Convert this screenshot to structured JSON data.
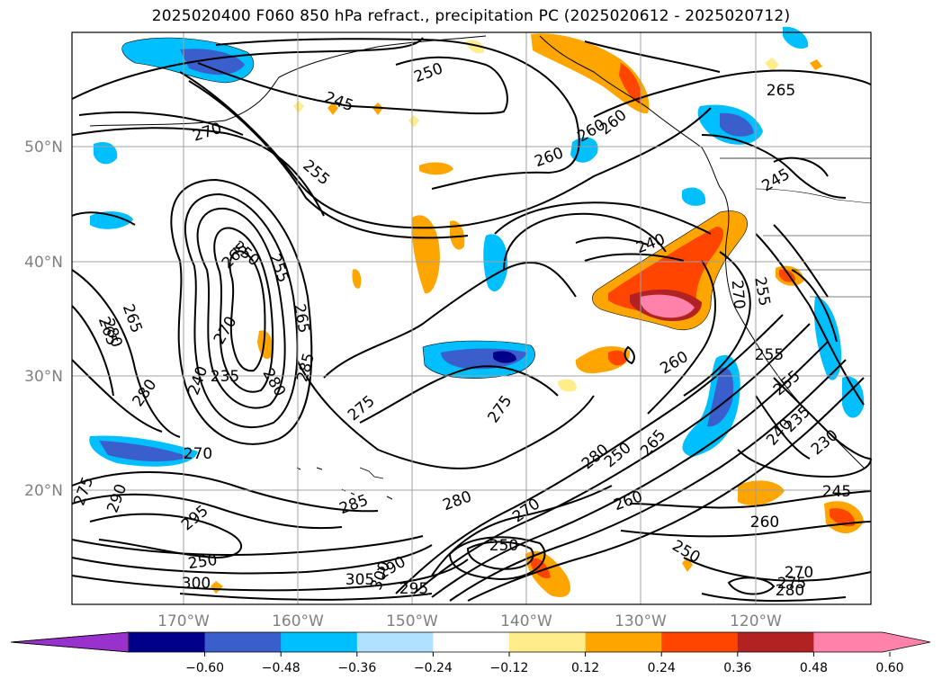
{
  "title": "2025020400 F060 850 hPa refract., precipitation PC (2025020612 - 2025020712)",
  "lat_ticks": [
    "50°N",
    "40°N",
    "30°N",
    "20°N"
  ],
  "lon_ticks": [
    "170°W",
    "160°W",
    "150°W",
    "140°W",
    "130°W",
    "120°W"
  ],
  "colorbar": {
    "ticks": [
      "−0.60",
      "−0.48",
      "−0.36",
      "−0.24",
      "−0.12",
      "0.12",
      "0.24",
      "0.36",
      "0.48",
      "0.60"
    ],
    "colors": [
      "#9932cc",
      "#00008b",
      "#3a5fcd",
      "#00bfff",
      "#b0e2ff",
      "#ffffff",
      "#ffec8b",
      "#ffa500",
      "#ff4500",
      "#b22222",
      "#ff82ab"
    ]
  },
  "contour_labels": [
    "250",
    "245",
    "270",
    "255",
    "260",
    "265",
    "255",
    "265",
    "270",
    "250",
    "235",
    "240",
    "260",
    "275",
    "280",
    "285",
    "280",
    "270",
    "275",
    "265",
    "250",
    "245",
    "240",
    "260",
    "280",
    "280",
    "270",
    "260",
    "250",
    "255",
    "255",
    "265",
    "255",
    "270",
    "260",
    "240",
    "235",
    "230",
    "250",
    "245",
    "260",
    "265",
    "270",
    "275",
    "280",
    "285",
    "290",
    "295",
    "300",
    "305",
    "265",
    "280",
    "290",
    "295",
    "250",
    "275",
    "300"
  ]
}
